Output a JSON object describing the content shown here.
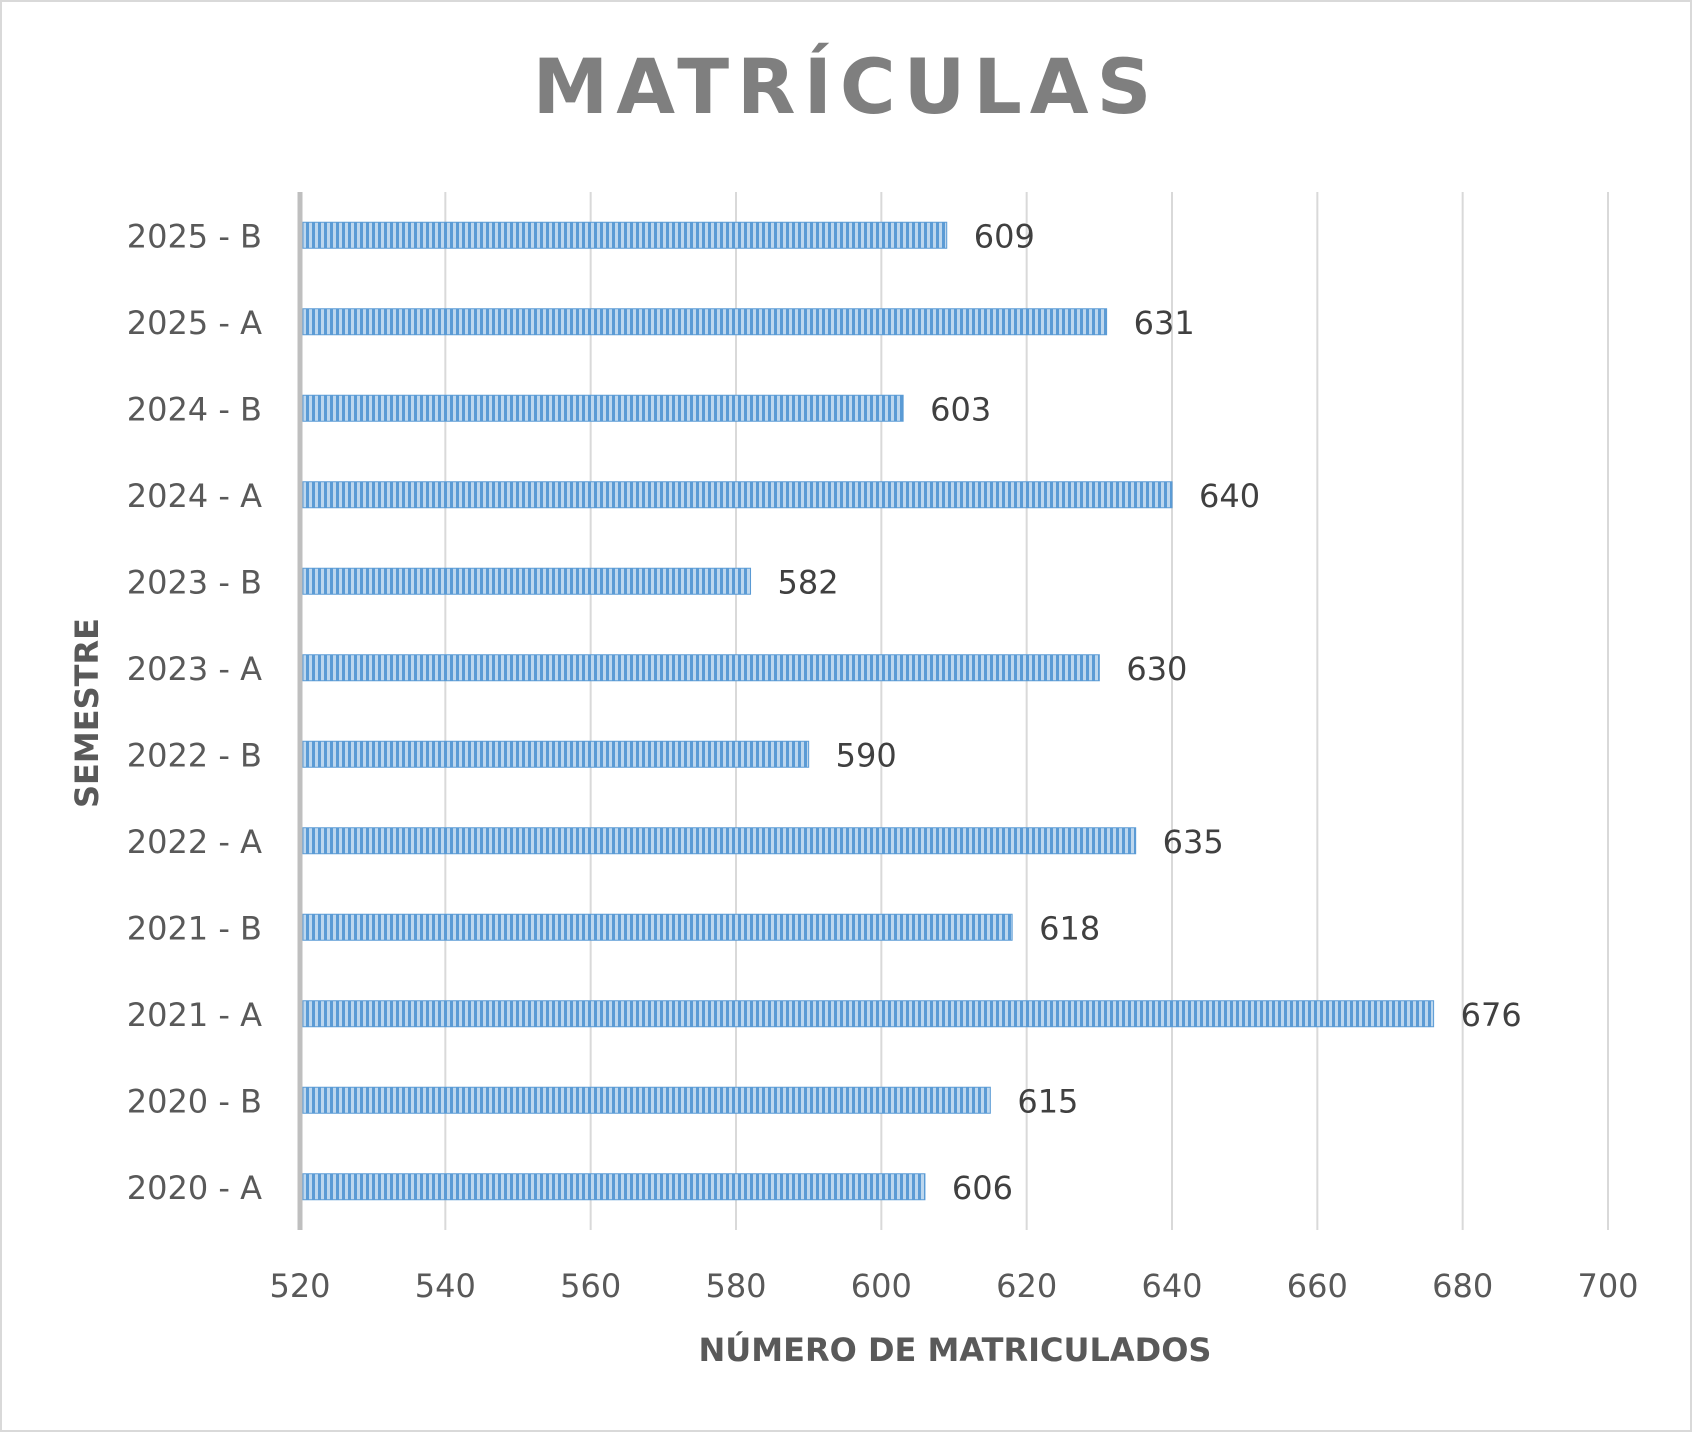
{
  "chart_data": {
    "type": "bar",
    "orientation": "horizontal",
    "title": "MATRÍCULAS",
    "xlabel": "NÚMERO DE MATRICULADOS",
    "ylabel": "SEMESTRE",
    "categories": [
      "2020 - A",
      "2020 - B",
      "2021 - A",
      "2021 - B",
      "2022 - A",
      "2022 - B",
      "2023 - A",
      "2023 - B",
      "2024 - A",
      "2024 - B",
      "2025 - A",
      "2025 - B"
    ],
    "values": [
      606,
      615,
      676,
      618,
      635,
      590,
      630,
      582,
      640,
      603,
      631,
      609
    ],
    "xlim": [
      520,
      700
    ],
    "xticks": [
      "520",
      "540",
      "560",
      "580",
      "600",
      "620",
      "640",
      "660",
      "680",
      "700"
    ],
    "grid": true,
    "legend": "none",
    "colors": {
      "bar": "#5b9bd5",
      "bar_light": "#bdd7ee",
      "grid": "#d9d9d9",
      "axis": "#bfbfbf"
    }
  }
}
